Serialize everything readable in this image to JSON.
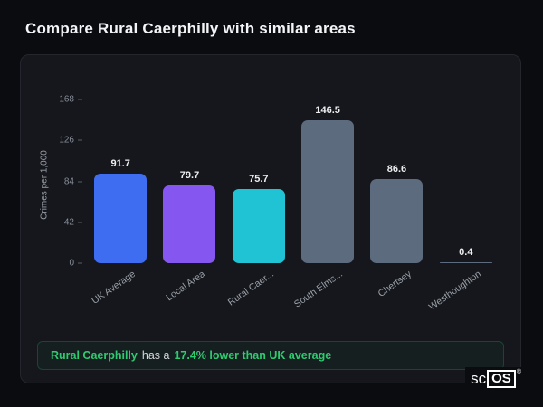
{
  "page_title": "Compare Rural Caerphilly with similar areas",
  "chart_data": {
    "type": "bar",
    "title": "",
    "ylabel": "Crimes per 1,000",
    "categories": [
      "UK Average",
      "Local Area",
      "Rural Caer...",
      "South Elms...",
      "Chertsey",
      "Westhoughton"
    ],
    "values": [
      91.7,
      79.7,
      75.7,
      146.5,
      86.6,
      0.4
    ],
    "value_labels": [
      "91.7",
      "79.7",
      "75.7",
      "146.5",
      "86.6",
      "0.4"
    ],
    "bar_colors": [
      "#3e6df2",
      "#8657f0",
      "#20c3d4",
      "#5d6b7e",
      "#5d6b7e",
      "#5d6b7e"
    ],
    "yticks": [
      0,
      42,
      84,
      126,
      168
    ],
    "ylim": [
      0,
      168
    ],
    "grid": false,
    "legend": "none"
  },
  "note": {
    "area": "Rural Caerphilly",
    "connector": "has a",
    "stat": "17.4% lower than UK average"
  },
  "logo": {
    "prefix": "sc",
    "boxed": "OS",
    "registered": "®"
  },
  "colors": {
    "background": "#0b0c10",
    "card": "#15171c",
    "accent_green": "#2ecc71",
    "bar_blue": "#3e6df2",
    "bar_purple": "#8657f0",
    "bar_teal": "#20c3d4",
    "bar_slate": "#5d6b7e"
  }
}
